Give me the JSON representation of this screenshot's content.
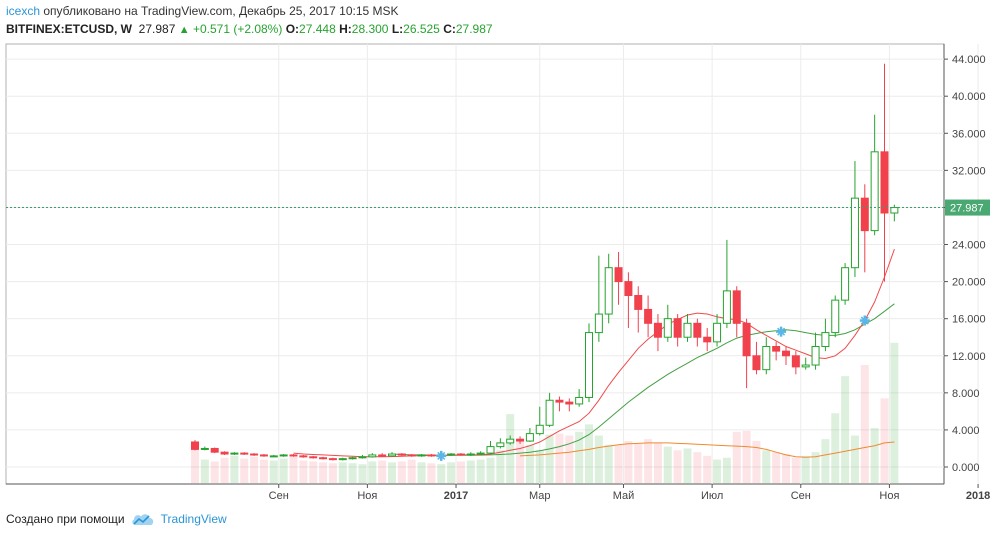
{
  "header": {
    "user": "icexch",
    "published": "опубликовано на TradingView.com, Декабрь 25, 2017 10:15 MSK"
  },
  "symbol": {
    "ticker": "BITFINEX:ETCUSD, W",
    "last": "27.987",
    "arrow": "▲",
    "change": "+0.571 (+2.08%)",
    "o_label": "O:",
    "o": "27.448",
    "h_label": "H:",
    "h": "28.300",
    "l_label": "L:",
    "l": "26.525",
    "c_label": "C:",
    "c": "27.987"
  },
  "footer": {
    "created_with": "Создано при помощи",
    "brand": "TradingView"
  },
  "colors": {
    "up": "#26a32e",
    "down": "#f0414d",
    "ma_short": "#f04a4a",
    "ma_mid": "#43a043",
    "ma_long": "#f08a2e",
    "price_label_bg": "#4aa872",
    "marker": "#5ab6e6"
  },
  "chart_data": {
    "type": "candlestick",
    "y_ticks": [
      "44.000",
      "40.000",
      "36.000",
      "32.000",
      "28.000",
      "24.000",
      "20.000",
      "16.000",
      "12.000",
      "8.000",
      "4.000",
      "0.000"
    ],
    "ylim": [
      -2,
      46
    ],
    "x_labels": [
      "Сен",
      "Ноя",
      "2017",
      "Мар",
      "Май",
      "Июл",
      "Сен",
      "Ноя",
      "2018"
    ],
    "x_label_positions": [
      8.5,
      17.5,
      26.5,
      35,
      43.5,
      52.5,
      61.5,
      70.5,
      79.5
    ],
    "current_price": 27.987,
    "current_price_label": "27.987",
    "grid": true,
    "candles": [
      [
        2.7,
        1.9,
        2.9,
        1.8
      ],
      [
        1.9,
        2.0,
        2.2,
        1.8
      ],
      [
        2.0,
        1.6,
        2.1,
        1.5
      ],
      [
        1.6,
        1.4,
        1.7,
        1.3
      ],
      [
        1.4,
        1.5,
        1.6,
        1.3
      ],
      [
        1.5,
        1.4,
        1.6,
        1.3
      ],
      [
        1.4,
        1.3,
        1.5,
        1.2
      ],
      [
        1.3,
        1.2,
        1.4,
        1.1
      ],
      [
        1.2,
        1.2,
        1.3,
        1.1
      ],
      [
        1.2,
        1.3,
        1.4,
        1.1
      ],
      [
        1.3,
        1.2,
        1.4,
        1.1
      ],
      [
        1.2,
        1.1,
        1.3,
        1.0
      ],
      [
        1.1,
        1.0,
        1.2,
        0.9
      ],
      [
        1.0,
        0.9,
        1.1,
        0.8
      ],
      [
        0.9,
        0.8,
        1.0,
        0.7
      ],
      [
        0.8,
        0.9,
        1.0,
        0.7
      ],
      [
        0.9,
        1.0,
        1.1,
        0.8
      ],
      [
        1.0,
        1.1,
        1.3,
        0.9
      ],
      [
        1.1,
        1.3,
        1.5,
        1.0
      ],
      [
        1.3,
        1.2,
        1.5,
        1.1
      ],
      [
        1.2,
        1.4,
        1.6,
        1.1
      ],
      [
        1.4,
        1.3,
        1.5,
        1.2
      ],
      [
        1.3,
        1.2,
        1.4,
        1.1
      ],
      [
        1.2,
        1.3,
        1.4,
        1.1
      ],
      [
        1.3,
        1.2,
        1.4,
        1.1
      ],
      [
        1.2,
        1.3,
        1.4,
        1.1
      ],
      [
        1.3,
        1.4,
        1.5,
        1.2
      ],
      [
        1.4,
        1.3,
        1.5,
        1.2
      ],
      [
        1.3,
        1.4,
        1.6,
        1.2
      ],
      [
        1.4,
        1.5,
        1.7,
        1.3
      ],
      [
        1.5,
        2.2,
        2.8,
        1.4
      ],
      [
        2.2,
        2.6,
        3.1,
        2.0
      ],
      [
        2.6,
        3.0,
        3.4,
        2.4
      ],
      [
        3.0,
        2.8,
        3.3,
        2.5
      ],
      [
        2.8,
        3.6,
        4.2,
        2.7
      ],
      [
        3.6,
        4.5,
        6.5,
        3.4
      ],
      [
        4.5,
        7.2,
        8.0,
        4.3
      ],
      [
        7.2,
        7.0,
        7.6,
        6.0
      ],
      [
        7.0,
        6.8,
        7.4,
        6.0
      ],
      [
        6.8,
        7.5,
        8.4,
        6.5
      ],
      [
        7.5,
        14.5,
        15.5,
        7.0
      ],
      [
        14.5,
        16.5,
        22.8,
        13.5
      ],
      [
        16.5,
        21.5,
        23.0,
        15.5
      ],
      [
        21.5,
        20.0,
        23.2,
        17.5
      ],
      [
        20.0,
        18.5,
        21.0,
        15.0
      ],
      [
        18.5,
        17.0,
        19.5,
        14.5
      ],
      [
        17.0,
        15.5,
        18.5,
        14.0
      ],
      [
        15.5,
        14.0,
        16.5,
        12.5
      ],
      [
        14.0,
        16.0,
        17.5,
        13.5
      ],
      [
        16.0,
        14.0,
        16.5,
        13.0
      ],
      [
        14.0,
        15.5,
        16.5,
        13.5
      ],
      [
        15.5,
        14.0,
        16.0,
        13.0
      ],
      [
        14.0,
        13.5,
        15.0,
        12.5
      ],
      [
        13.5,
        15.5,
        16.5,
        13.0
      ],
      [
        15.5,
        19.0,
        24.5,
        15.0
      ],
      [
        19.0,
        15.5,
        19.5,
        14.0
      ],
      [
        15.5,
        12.0,
        16.0,
        8.5
      ],
      [
        12.0,
        10.5,
        13.5,
        10.0
      ],
      [
        10.5,
        13.0,
        14.0,
        10.0
      ],
      [
        13.0,
        12.5,
        13.5,
        11.5
      ],
      [
        12.5,
        12.0,
        13.0,
        11.0
      ],
      [
        12.0,
        10.8,
        12.5,
        10.0
      ],
      [
        10.8,
        11.0,
        11.8,
        10.5
      ],
      [
        11.0,
        13.0,
        14.5,
        10.5
      ],
      [
        13.0,
        14.5,
        16.0,
        12.5
      ],
      [
        14.5,
        18.0,
        18.5,
        14.0
      ],
      [
        18.0,
        21.5,
        22.0,
        17.5
      ],
      [
        21.5,
        29.0,
        33.0,
        20.5
      ],
      [
        29.0,
        25.5,
        30.5,
        21.0
      ],
      [
        25.5,
        34.0,
        38.0,
        25.0
      ],
      [
        34.0,
        27.4,
        43.5,
        20.0
      ],
      [
        27.4,
        27.987,
        28.3,
        26.5
      ]
    ],
    "ma_short": [
      null,
      null,
      null,
      null,
      null,
      null,
      null,
      null,
      null,
      null,
      1.5,
      1.4,
      1.35,
      1.3,
      1.25,
      1.2,
      1.15,
      1.1,
      1.1,
      1.1,
      1.12,
      1.15,
      1.2,
      1.22,
      1.25,
      1.25,
      1.27,
      1.3,
      1.3,
      1.32,
      1.4,
      1.6,
      1.8,
      2.0,
      2.3,
      2.7,
      3.3,
      3.9,
      4.4,
      4.9,
      5.8,
      7.2,
      8.8,
      10.2,
      11.5,
      12.8,
      13.8,
      14.6,
      15.4,
      15.9,
      16.4,
      16.6,
      16.5,
      16.2,
      16.0,
      15.9,
      15.5,
      14.8,
      14.2,
      13.6,
      13.0,
      12.6,
      12.2,
      11.8,
      11.7,
      12.0,
      12.8,
      14.2,
      15.8,
      17.8,
      20.5,
      23.5
    ],
    "ma_mid": [
      null,
      null,
      null,
      null,
      null,
      null,
      null,
      null,
      null,
      null,
      null,
      null,
      null,
      null,
      null,
      null,
      null,
      null,
      null,
      null,
      1.4,
      1.35,
      1.3,
      1.3,
      1.28,
      1.27,
      1.27,
      1.27,
      1.27,
      1.28,
      1.3,
      1.35,
      1.4,
      1.5,
      1.6,
      1.75,
      1.95,
      2.2,
      2.5,
      2.9,
      3.5,
      4.3,
      5.2,
      6.1,
      7.0,
      7.8,
      8.6,
      9.3,
      10.0,
      10.6,
      11.2,
      11.8,
      12.3,
      12.8,
      13.4,
      13.9,
      14.2,
      14.4,
      14.6,
      14.7,
      14.8,
      14.7,
      14.5,
      14.3,
      14.2,
      14.2,
      14.4,
      14.8,
      15.4,
      16.0,
      16.8,
      17.6
    ],
    "ma_long": [
      null,
      null,
      null,
      null,
      null,
      null,
      null,
      null,
      null,
      null,
      null,
      null,
      null,
      null,
      null,
      null,
      null,
      null,
      null,
      null,
      null,
      null,
      null,
      null,
      null,
      null,
      null,
      null,
      null,
      null,
      null,
      null,
      null,
      1.2,
      1.25,
      1.3,
      1.4,
      1.5,
      1.6,
      1.75,
      1.9,
      2.1,
      2.25,
      2.4,
      2.5,
      2.55,
      2.6,
      2.6,
      2.6,
      2.55,
      2.5,
      2.45,
      2.4,
      2.35,
      2.3,
      2.25,
      2.2,
      2.1,
      1.9,
      1.6,
      1.3,
      1.1,
      1.05,
      1.1,
      1.3,
      1.5,
      1.7,
      1.9,
      2.1,
      2.3,
      2.6,
      2.7
    ],
    "volume": [
      2.0,
      0.8,
      0.6,
      1.0,
      1.2,
      0.9,
      1.1,
      0.8,
      0.7,
      0.9,
      1.1,
      0.7,
      0.6,
      0.5,
      0.4,
      0.5,
      0.4,
      0.3,
      0.6,
      0.7,
      0.5,
      0.6,
      0.8,
      0.5,
      0.4,
      0.3,
      0.5,
      0.6,
      0.7,
      0.8,
      1.0,
      1.8,
      5.7,
      3.0,
      2.4,
      1.8,
      3.5,
      3.6,
      3.4,
      3.8,
      4.6,
      3.4,
      2.4,
      2.4,
      2.8,
      2.5,
      3.0,
      2.6,
      2.2,
      1.8,
      2.0,
      1.6,
      1.2,
      0.8,
      1.0,
      3.8,
      3.9,
      2.8,
      1.8,
      1.6,
      1.4,
      1.0,
      1.2,
      1.6,
      3.0,
      5.8,
      9.8,
      3.4,
      11.0,
      4.2,
      7.4,
      13.4
    ],
    "markers": [
      {
        "x": 25,
        "y": 1.2
      },
      {
        "x": 59.5,
        "y": 14.6
      },
      {
        "x": 68,
        "y": 15.8
      }
    ]
  }
}
